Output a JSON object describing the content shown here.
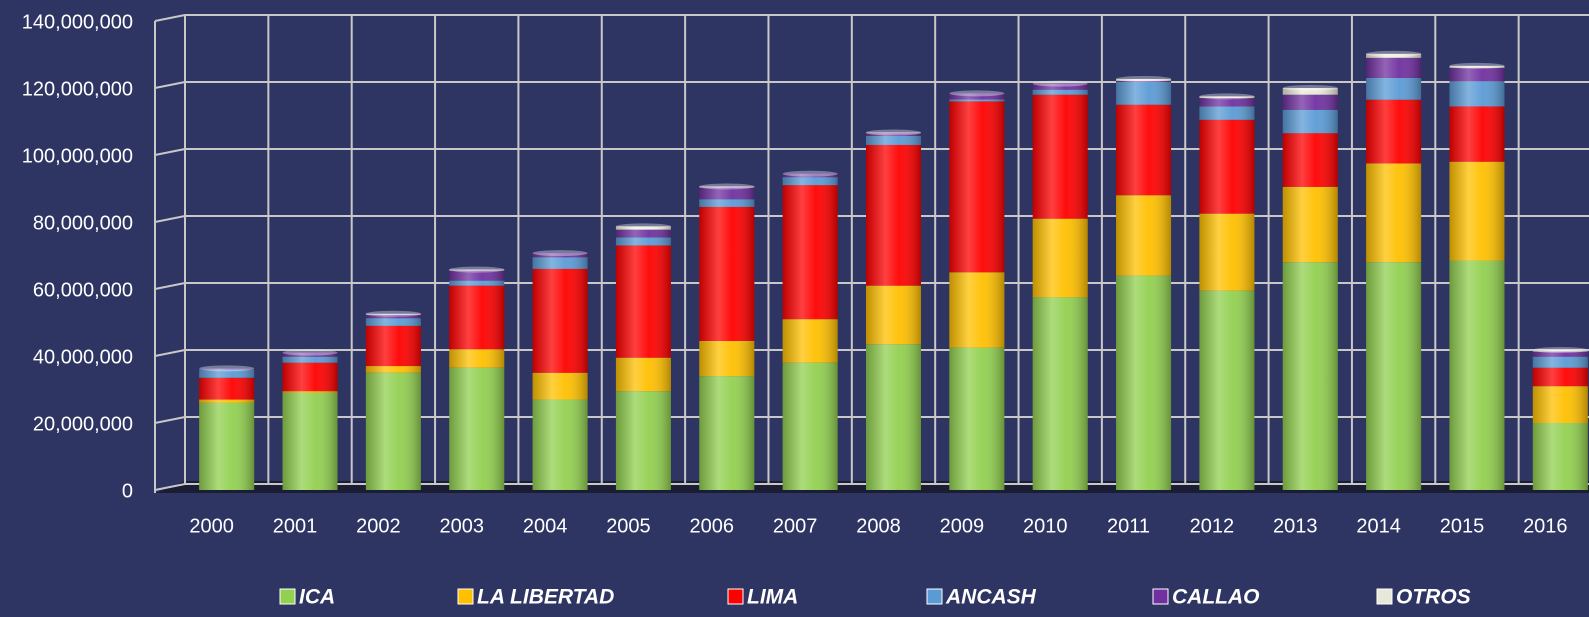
{
  "chart_data": {
    "type": "stacked_bar",
    "categories": [
      "2000",
      "2001",
      "2002",
      "2003",
      "2004",
      "2005",
      "2006",
      "2007",
      "2008",
      "2009",
      "2010",
      "2011",
      "2012",
      "2013",
      "2014",
      "2015",
      "2016"
    ],
    "series": [
      {
        "name": "ICA",
        "color": "#92d050",
        "values": [
          26000000,
          29000000,
          35000000,
          36500000,
          27000000,
          29500000,
          34000000,
          38000000,
          43500000,
          42500000,
          57500000,
          64000000,
          59500000,
          68000000,
          68000000,
          68500000,
          20000000
        ]
      },
      {
        "name": "LA LIBERTAD",
        "color": "#ffc000",
        "values": [
          1000000,
          500000,
          2000000,
          5500000,
          8000000,
          10000000,
          10500000,
          13000000,
          17500000,
          22500000,
          23500000,
          24000000,
          23000000,
          22500000,
          29500000,
          29500000,
          11000000
        ]
      },
      {
        "name": "LIMA",
        "color": "#ff0000",
        "values": [
          6500000,
          8500000,
          12000000,
          19000000,
          31000000,
          33500000,
          40000000,
          40000000,
          42000000,
          51000000,
          37000000,
          27000000,
          28000000,
          16000000,
          19000000,
          16500000,
          5500000
        ]
      },
      {
        "name": "ANCASH",
        "color": "#5b9bd5",
        "values": [
          2500000,
          1800000,
          2300000,
          1500000,
          3500000,
          2400000,
          2300000,
          2400000,
          2700000,
          600000,
          1500000,
          6800000,
          4000000,
          7000000,
          6500000,
          7500000,
          3300000
        ]
      },
      {
        "name": "CALLAO",
        "color": "#7030a0",
        "values": [
          300000,
          1200000,
          1000000,
          3000000,
          1200000,
          2300000,
          3500000,
          1000000,
          800000,
          1800000,
          1800000,
          300000,
          2500000,
          4500000,
          6000000,
          4000000,
          1500000
        ]
      },
      {
        "name": "OTROS",
        "color": "#e8e8d8",
        "values": [
          0,
          0,
          300000,
          300000,
          0,
          1000000,
          300000,
          0,
          200000,
          0,
          0,
          600000,
          500000,
          2000000,
          1200000,
          600000,
          500000
        ]
      }
    ],
    "ylim": [
      0,
      140000000
    ],
    "yticks": [
      0,
      {
        "value": 20000000,
        "label": "20,000,000"
      },
      {
        "value": 40000000,
        "label": "40,000,000"
      },
      {
        "value": 60000000,
        "label": "60,000,000"
      },
      {
        "value": 80000000,
        "label": "80,000,000"
      },
      {
        "value": 100000000,
        "label": "100,000,000"
      },
      {
        "value": 120000000,
        "label": "120,000,000"
      },
      {
        "value": 140000000,
        "label": "140,000,000"
      }
    ],
    "grid": true,
    "legend": "bottom"
  }
}
